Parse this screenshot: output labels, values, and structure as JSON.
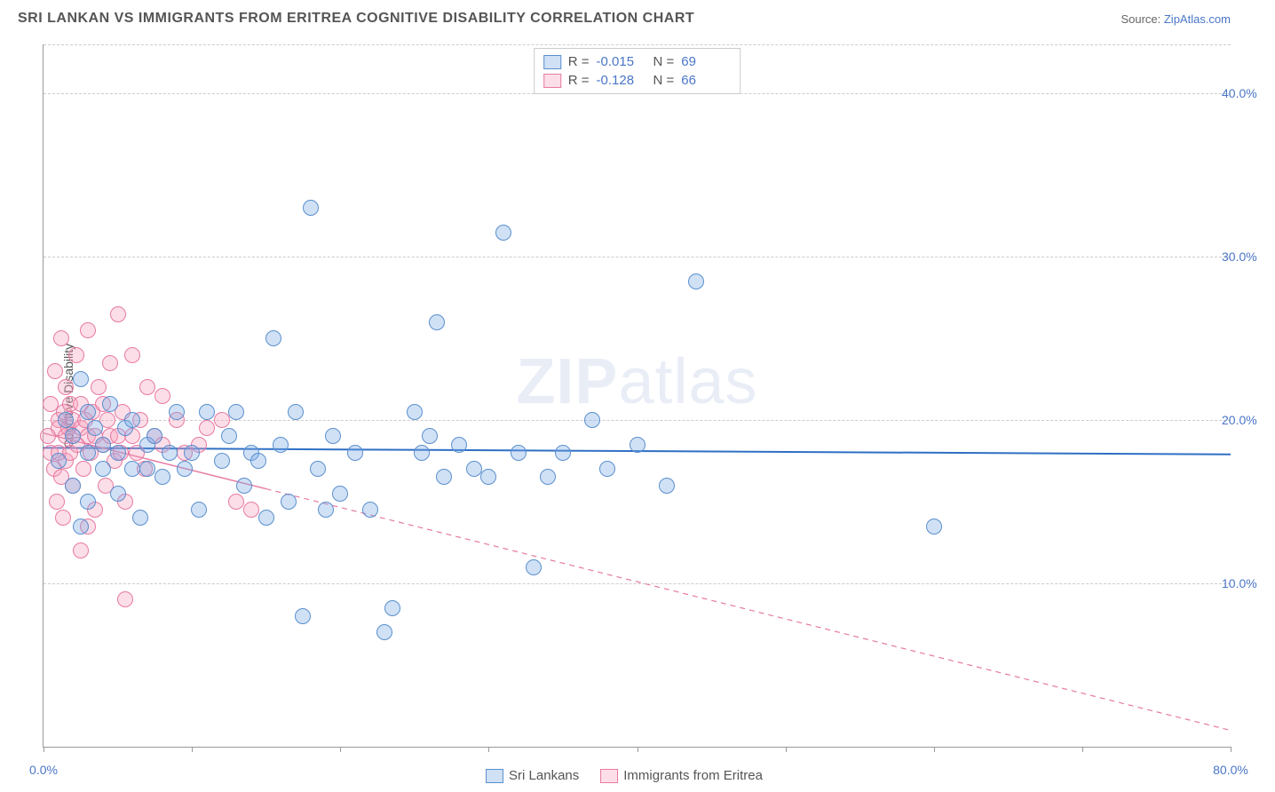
{
  "title": "SRI LANKAN VS IMMIGRANTS FROM ERITREA COGNITIVE DISABILITY CORRELATION CHART",
  "source_label": "Source: ",
  "source_link": "ZipAtlas.com",
  "ylabel": "Cognitive Disability",
  "watermark": {
    "bold": "ZIP",
    "light": "atlas"
  },
  "chart": {
    "type": "scatter",
    "xlim": [
      0,
      80
    ],
    "ylim": [
      0,
      43
    ],
    "x_ticks_major": [
      0,
      10,
      20,
      30,
      40,
      50,
      60,
      70,
      80
    ],
    "x_tick_labels": [
      {
        "pos": 0,
        "label": "0.0%"
      },
      {
        "pos": 80,
        "label": "80.0%"
      }
    ],
    "y_gridlines": [
      10,
      20,
      30,
      40,
      43
    ],
    "y_tick_labels": [
      {
        "pos": 10,
        "label": "10.0%"
      },
      {
        "pos": 20,
        "label": "20.0%"
      },
      {
        "pos": 30,
        "label": "30.0%"
      },
      {
        "pos": 40,
        "label": "40.0%"
      }
    ],
    "grid_color": "#cccccc",
    "axis_color": "#999999",
    "background_color": "#ffffff",
    "marker_radius": 9,
    "marker_stroke_width": 1.2,
    "series": [
      {
        "name": "Sri Lankans",
        "fill": "rgba(120,170,230,0.35)",
        "stroke": "#5a8fce",
        "R": "-0.015",
        "N": "69",
        "trend": {
          "y_at_x0": 18.3,
          "y_at_xmax": 17.9,
          "style": "solid",
          "color": "#2f6fc5",
          "width": 2
        },
        "points": [
          [
            1,
            17.5
          ],
          [
            1.5,
            20
          ],
          [
            2,
            16
          ],
          [
            2,
            19
          ],
          [
            2.5,
            22.5
          ],
          [
            2.5,
            13.5
          ],
          [
            3,
            18
          ],
          [
            3,
            20.5
          ],
          [
            3,
            15
          ],
          [
            3.5,
            19.5
          ],
          [
            4,
            17
          ],
          [
            4,
            18.5
          ],
          [
            4.5,
            21
          ],
          [
            5,
            15.5
          ],
          [
            5,
            18
          ],
          [
            5.5,
            19.5
          ],
          [
            6,
            17
          ],
          [
            6,
            20
          ],
          [
            6.5,
            14
          ],
          [
            7,
            18.5
          ],
          [
            7,
            17
          ],
          [
            7.5,
            19
          ],
          [
            8,
            16.5
          ],
          [
            8.5,
            18
          ],
          [
            9,
            20.5
          ],
          [
            9.5,
            17
          ],
          [
            10,
            18
          ],
          [
            10.5,
            14.5
          ],
          [
            11,
            20.5
          ],
          [
            12,
            17.5
          ],
          [
            12.5,
            19
          ],
          [
            13,
            20.5
          ],
          [
            13.5,
            16
          ],
          [
            14,
            18
          ],
          [
            14.5,
            17.5
          ],
          [
            15,
            14
          ],
          [
            15.5,
            25
          ],
          [
            16,
            18.5
          ],
          [
            16.5,
            15
          ],
          [
            17,
            20.5
          ],
          [
            17.5,
            8
          ],
          [
            18,
            33
          ],
          [
            18.5,
            17
          ],
          [
            19,
            14.5
          ],
          [
            19.5,
            19
          ],
          [
            20,
            15.5
          ],
          [
            21,
            18
          ],
          [
            22,
            14.5
          ],
          [
            23,
            7
          ],
          [
            23.5,
            8.5
          ],
          [
            25,
            20.5
          ],
          [
            25.5,
            18
          ],
          [
            26,
            19
          ],
          [
            26.5,
            26
          ],
          [
            27,
            16.5
          ],
          [
            28,
            18.5
          ],
          [
            29,
            17
          ],
          [
            30,
            16.5
          ],
          [
            31,
            31.5
          ],
          [
            32,
            18
          ],
          [
            33,
            11
          ],
          [
            34,
            16.5
          ],
          [
            35,
            18
          ],
          [
            37,
            20
          ],
          [
            38,
            17
          ],
          [
            40,
            18.5
          ],
          [
            42,
            16
          ],
          [
            44,
            28.5
          ],
          [
            60,
            13.5
          ]
        ]
      },
      {
        "name": "Immigrants from Eritrea",
        "fill": "rgba(245,160,190,0.35)",
        "stroke": "#e77aa2",
        "R": "-0.128",
        "N": "66",
        "trend": {
          "y_at_x0": 19.2,
          "y_at_xmax": 1.0,
          "style": "dashed",
          "solid_until_x": 15,
          "color": "#e77aa2",
          "width": 1.5
        },
        "points": [
          [
            0.3,
            19
          ],
          [
            0.5,
            18
          ],
          [
            0.5,
            21
          ],
          [
            0.7,
            17
          ],
          [
            0.8,
            23
          ],
          [
            0.9,
            15
          ],
          [
            1,
            20
          ],
          [
            1,
            19.5
          ],
          [
            1,
            18
          ],
          [
            1.2,
            25
          ],
          [
            1.2,
            16.5
          ],
          [
            1.3,
            14
          ],
          [
            1.4,
            20.5
          ],
          [
            1.5,
            19
          ],
          [
            1.5,
            17.5
          ],
          [
            1.5,
            22
          ],
          [
            1.7,
            19.5
          ],
          [
            1.8,
            18
          ],
          [
            1.8,
            21
          ],
          [
            2,
            16
          ],
          [
            2,
            20
          ],
          [
            2,
            19
          ],
          [
            2.2,
            24
          ],
          [
            2.3,
            18.5
          ],
          [
            2.5,
            12
          ],
          [
            2.5,
            19.5
          ],
          [
            2.5,
            21
          ],
          [
            2.7,
            17
          ],
          [
            2.8,
            20
          ],
          [
            3,
            13.5
          ],
          [
            3,
            19
          ],
          [
            3,
            25.5
          ],
          [
            3.2,
            18
          ],
          [
            3.3,
            20.5
          ],
          [
            3.5,
            14.5
          ],
          [
            3.5,
            19
          ],
          [
            3.7,
            22
          ],
          [
            4,
            18.5
          ],
          [
            4,
            21
          ],
          [
            4.2,
            16
          ],
          [
            4.3,
            20
          ],
          [
            4.5,
            19
          ],
          [
            4.5,
            23.5
          ],
          [
            4.8,
            17.5
          ],
          [
            5,
            26.5
          ],
          [
            5,
            19
          ],
          [
            5.2,
            18
          ],
          [
            5.3,
            20.5
          ],
          [
            5.5,
            15
          ],
          [
            5.5,
            9
          ],
          [
            6,
            24
          ],
          [
            6,
            19
          ],
          [
            6.3,
            18
          ],
          [
            6.5,
            20
          ],
          [
            6.8,
            17
          ],
          [
            7,
            22
          ],
          [
            7.5,
            19
          ],
          [
            8,
            18.5
          ],
          [
            8,
            21.5
          ],
          [
            9,
            20
          ],
          [
            9.5,
            18
          ],
          [
            10.5,
            18.5
          ],
          [
            11,
            19.5
          ],
          [
            12,
            20
          ],
          [
            13,
            15
          ],
          [
            14,
            14.5
          ]
        ]
      }
    ]
  },
  "stats_legend_labels": {
    "R": "R =",
    "N": "N ="
  },
  "bottom_legend": [
    {
      "label": "Sri Lankans",
      "fill": "rgba(120,170,230,0.35)",
      "stroke": "#5a8fce"
    },
    {
      "label": "Immigrants from Eritrea",
      "fill": "rgba(245,160,190,0.35)",
      "stroke": "#e77aa2"
    }
  ]
}
